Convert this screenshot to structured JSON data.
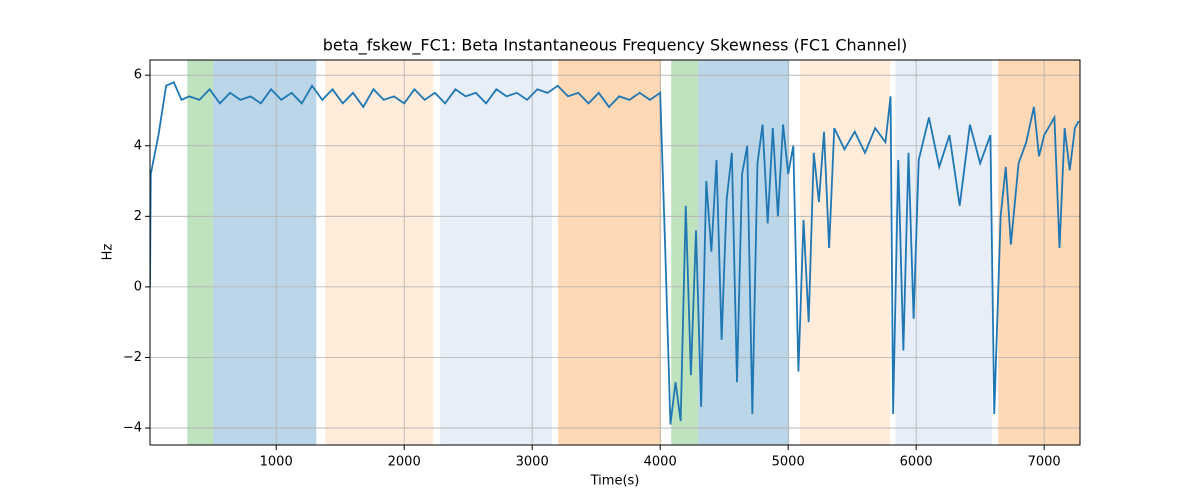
{
  "chart_data": {
    "type": "line",
    "title": "beta_fskew_FC1: Beta Instantaneous Frequency Skewness (FC1 Channel)",
    "x_label": "Time(s)",
    "y_label": "Hz",
    "x": [
      14,
      20,
      80,
      140,
      200,
      260,
      320,
      400,
      480,
      560,
      640,
      720,
      800,
      880,
      960,
      1040,
      1120,
      1200,
      1280,
      1360,
      1440,
      1520,
      1600,
      1680,
      1760,
      1840,
      1920,
      2000,
      2080,
      2160,
      2240,
      2320,
      2400,
      2480,
      2560,
      2640,
      2720,
      2800,
      2880,
      2960,
      3040,
      3120,
      3200,
      3280,
      3360,
      3440,
      3520,
      3600,
      3680,
      3760,
      3840,
      3920,
      4000,
      4040,
      4080,
      4120,
      4160,
      4200,
      4240,
      4280,
      4320,
      4360,
      4400,
      4440,
      4480,
      4520,
      4560,
      4600,
      4640,
      4680,
      4720,
      4760,
      4800,
      4840,
      4880,
      4920,
      4960,
      5000,
      5040,
      5080,
      5120,
      5160,
      5200,
      5240,
      5280,
      5320,
      5360,
      5440,
      5520,
      5600,
      5680,
      5760,
      5800,
      5820,
      5860,
      5900,
      5940,
      5980,
      6020,
      6100,
      6180,
      6260,
      6340,
      6420,
      6500,
      6580,
      6610,
      6660,
      6700,
      6740,
      6800,
      6860,
      6920,
      6960,
      7000,
      7080,
      7120,
      7160,
      7200,
      7240,
      7270
    ],
    "series": [
      {
        "color": "#1f77b4",
        "values": [
          0,
          3.2,
          4.3,
          5.7,
          5.8,
          5.3,
          5.4,
          5.3,
          5.6,
          5.2,
          5.5,
          5.3,
          5.4,
          5.2,
          5.6,
          5.3,
          5.5,
          5.2,
          5.7,
          5.3,
          5.6,
          5.2,
          5.5,
          5.1,
          5.6,
          5.3,
          5.4,
          5.2,
          5.6,
          5.3,
          5.5,
          5.2,
          5.6,
          5.4,
          5.5,
          5.2,
          5.6,
          5.4,
          5.5,
          5.3,
          5.6,
          5.5,
          5.7,
          5.4,
          5.5,
          5.2,
          5.5,
          5.1,
          5.4,
          5.3,
          5.5,
          5.3,
          5.5,
          1.0,
          -3.9,
          -2.7,
          -3.8,
          2.3,
          -2.5,
          1.6,
          -3.4,
          3.0,
          1.0,
          3.6,
          -1.5,
          2.5,
          3.8,
          -2.7,
          3.2,
          4.0,
          -3.6,
          3.5,
          4.6,
          1.8,
          4.5,
          2.0,
          4.6,
          3.2,
          4.0,
          -2.4,
          1.9,
          -1.0,
          3.8,
          2.4,
          4.4,
          1.1,
          4.5,
          3.9,
          4.4,
          3.8,
          4.5,
          4.1,
          5.4,
          -3.6,
          3.6,
          -1.8,
          3.8,
          -0.9,
          3.6,
          4.8,
          3.4,
          4.3,
          2.3,
          4.6,
          3.5,
          4.3,
          -3.6,
          2.0,
          3.4,
          1.2,
          3.5,
          4.1,
          5.1,
          3.7,
          4.3,
          4.8,
          1.1,
          4.5,
          3.3,
          4.5,
          4.7
        ]
      }
    ],
    "spans": [
      {
        "start": 305,
        "end": 508,
        "color": "#2ca02c",
        "opacity": 0.3
      },
      {
        "start": 508,
        "end": 1313,
        "color": "#1f77b4",
        "opacity": 0.3
      },
      {
        "start": 1383,
        "end": 2227,
        "color": "#ff7f0e",
        "opacity": 0.15
      },
      {
        "start": 2281,
        "end": 3156,
        "color": "#aec7e8",
        "opacity": 0.3
      },
      {
        "start": 3203,
        "end": 4008,
        "color": "#ff7f0e",
        "opacity": 0.3
      },
      {
        "start": 4086,
        "end": 4297,
        "color": "#2ca02c",
        "opacity": 0.3
      },
      {
        "start": 4297,
        "end": 5008,
        "color": "#1f77b4",
        "opacity": 0.3
      },
      {
        "start": 5094,
        "end": 5797,
        "color": "#ff7f0e",
        "opacity": 0.15
      },
      {
        "start": 5836,
        "end": 6594,
        "color": "#aec7e8",
        "opacity": 0.3
      },
      {
        "start": 6641,
        "end": 7280,
        "color": "#ff7f0e",
        "opacity": 0.3
      }
    ],
    "xlim": [
      14,
      7280
    ],
    "ylim": [
      -4.48,
      6.43
    ],
    "xticks": [
      1000,
      2000,
      3000,
      4000,
      5000,
      6000,
      7000
    ],
    "yticks": [
      {
        "value": -4,
        "label": "−4"
      },
      {
        "value": -2,
        "label": "−2"
      },
      0,
      2,
      4,
      6
    ],
    "grid": true
  }
}
